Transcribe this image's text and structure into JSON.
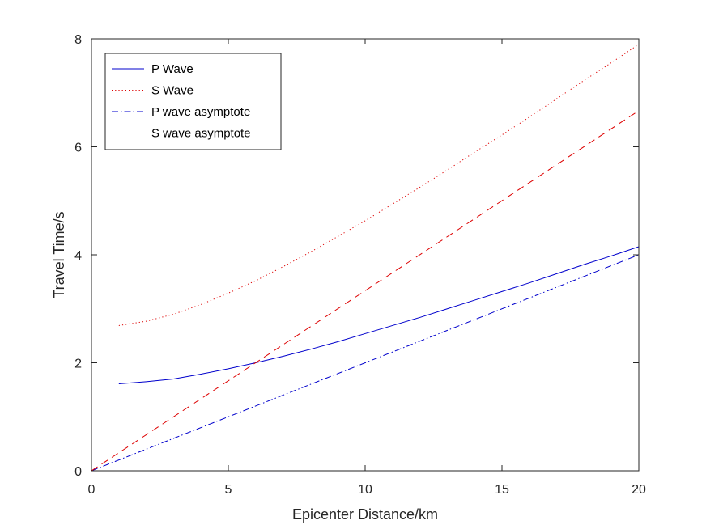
{
  "chart_data": {
    "type": "line",
    "xlabel": "Epicenter Distance/km",
    "ylabel": "Travel Time/s",
    "xlim": [
      0,
      20
    ],
    "ylim": [
      0,
      8
    ],
    "xticks": [
      0,
      5,
      10,
      15,
      20
    ],
    "yticks": [
      0,
      2,
      4,
      6,
      8
    ],
    "grid": false,
    "legend_position": "top-left",
    "series": [
      {
        "name": "P Wave",
        "color": "#0000cc",
        "style": "solid",
        "x": [
          1,
          2,
          3,
          4,
          5,
          6,
          7,
          8,
          9,
          10,
          11,
          12,
          13,
          14,
          15,
          16,
          17,
          18,
          19,
          20
        ],
        "y": [
          1.61,
          1.65,
          1.7,
          1.79,
          1.89,
          2.0,
          2.12,
          2.25,
          2.39,
          2.54,
          2.69,
          2.84,
          3.0,
          3.16,
          3.32,
          3.48,
          3.65,
          3.82,
          3.98,
          4.15
        ]
      },
      {
        "name": "S Wave",
        "color": "#dd0000",
        "style": "dotted",
        "x": [
          1,
          2,
          3,
          4,
          5,
          6,
          7,
          8,
          9,
          10,
          11,
          12,
          13,
          14,
          15,
          16,
          17,
          18,
          19,
          20
        ],
        "y": [
          2.69,
          2.77,
          2.9,
          3.08,
          3.29,
          3.52,
          3.78,
          4.05,
          4.34,
          4.63,
          4.94,
          5.25,
          5.57,
          5.9,
          6.22,
          6.55,
          6.89,
          7.23,
          7.56,
          7.9
        ]
      },
      {
        "name": "P wave asymptote",
        "color": "#0000cc",
        "style": "dashdot",
        "x": [
          0,
          20
        ],
        "y": [
          0,
          4.0
        ]
      },
      {
        "name": "S wave asymptote",
        "color": "#dd0000",
        "style": "dashed",
        "x": [
          0,
          20
        ],
        "y": [
          0,
          6.67
        ]
      }
    ]
  }
}
